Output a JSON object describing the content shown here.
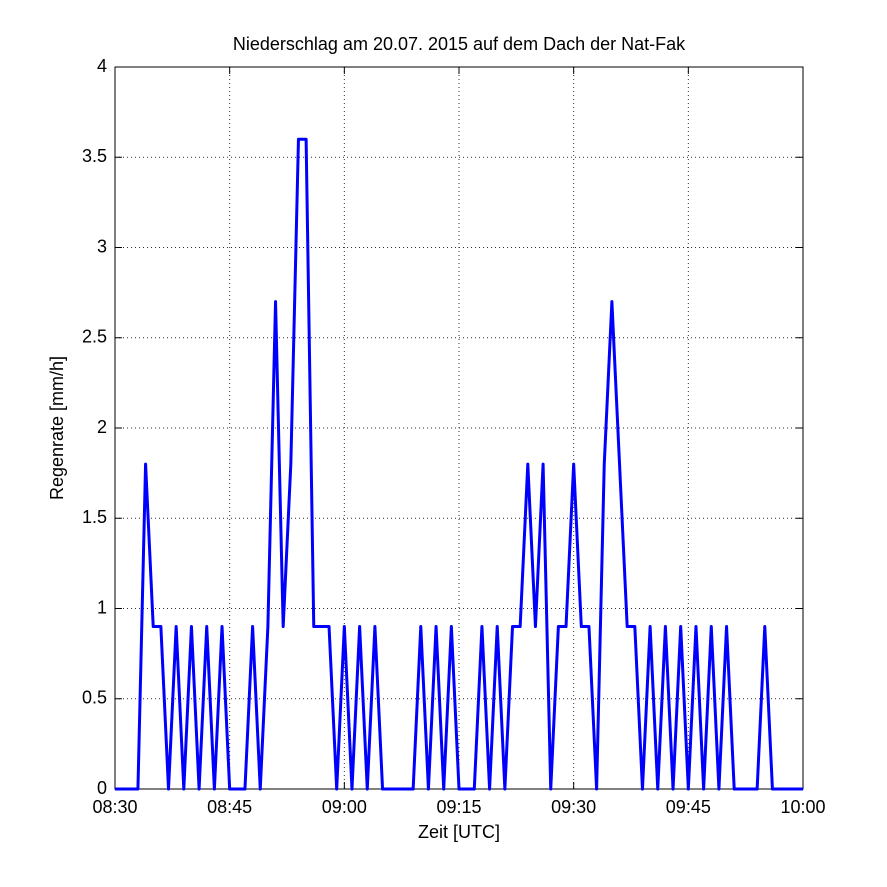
{
  "chart_data": {
    "type": "line",
    "title": "Niederschlag am 20.07. 2015 auf dem Dach der Nat-Fak",
    "x_label": "Zeit [UTC]",
    "y_label": "Regenrate [mm/h]",
    "x": [
      "08:30",
      "08:31",
      "08:32",
      "08:33",
      "08:34",
      "08:35",
      "08:36",
      "08:37",
      "08:38",
      "08:39",
      "08:40",
      "08:41",
      "08:42",
      "08:43",
      "08:44",
      "08:45",
      "08:46",
      "08:47",
      "08:48",
      "08:49",
      "08:50",
      "08:51",
      "08:52",
      "08:53",
      "08:54",
      "08:55",
      "08:56",
      "08:57",
      "08:58",
      "08:59",
      "09:00",
      "09:01",
      "09:02",
      "09:03",
      "09:04",
      "09:05",
      "09:06",
      "09:07",
      "09:08",
      "09:09",
      "09:10",
      "09:11",
      "09:12",
      "09:13",
      "09:14",
      "09:15",
      "09:16",
      "09:17",
      "09:18",
      "09:19",
      "09:20",
      "09:21",
      "09:22",
      "09:23",
      "09:24",
      "09:25",
      "09:26",
      "09:27",
      "09:28",
      "09:29",
      "09:30",
      "09:31",
      "09:32",
      "09:33",
      "09:34",
      "09:35",
      "09:36",
      "09:37",
      "09:38",
      "09:39",
      "09:40",
      "09:41",
      "09:42",
      "09:43",
      "09:44",
      "09:45",
      "09:46",
      "09:47",
      "09:48",
      "09:49",
      "09:50",
      "09:51",
      "09:52",
      "09:53",
      "09:54",
      "09:55",
      "09:56",
      "09:57",
      "09:58",
      "09:59",
      "10:00"
    ],
    "series": [
      {
        "name": "Regenrate",
        "color": "#0000ff",
        "values": [
          0,
          0,
          0,
          0,
          1.8,
          0.9,
          0.9,
          0,
          0.9,
          0,
          0.9,
          0,
          0.9,
          0,
          0.9,
          0,
          0,
          0,
          0.9,
          0,
          0.9,
          2.7,
          0.9,
          1.8,
          3.6,
          3.6,
          0.9,
          0.9,
          0.9,
          0,
          0.9,
          0,
          0.9,
          0,
          0.9,
          0,
          0,
          0,
          0,
          0,
          0.9,
          0,
          0.9,
          0,
          0.9,
          0,
          0,
          0,
          0.9,
          0,
          0.9,
          0,
          0.9,
          0.9,
          1.8,
          0.9,
          1.8,
          0,
          0.9,
          0.9,
          1.8,
          0.9,
          0.9,
          0,
          1.8,
          2.7,
          1.8,
          0.9,
          0.9,
          0,
          0.9,
          0,
          0.9,
          0,
          0.9,
          0,
          0.9,
          0,
          0.9,
          0,
          0.9,
          0,
          0,
          0,
          0,
          0.9,
          0,
          0,
          0,
          0,
          0
        ]
      }
    ],
    "xlim": [
      "08:30",
      "10:00"
    ],
    "xticks": [
      "08:30",
      "08:45",
      "09:00",
      "09:15",
      "09:30",
      "09:45",
      "10:00"
    ],
    "ylim": [
      0,
      4
    ],
    "yticks": [
      0,
      0.5,
      1,
      1.5,
      2,
      2.5,
      3,
      3.5,
      4
    ],
    "grid": true
  }
}
